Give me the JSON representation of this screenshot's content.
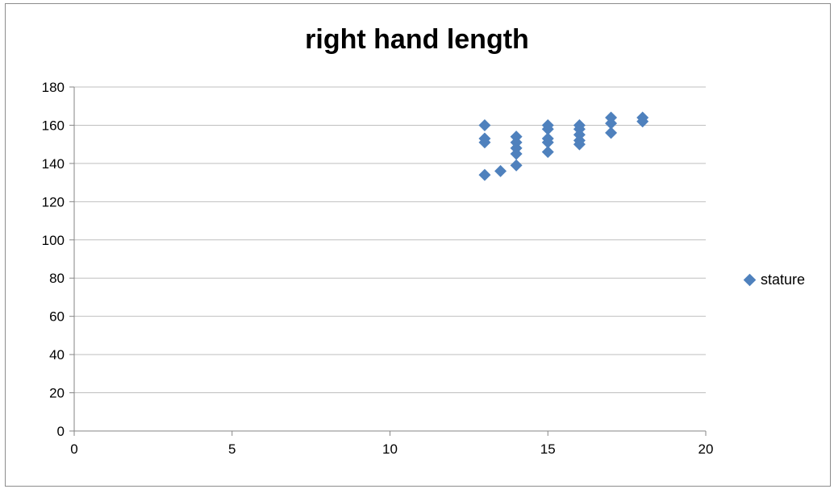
{
  "chart_data": {
    "type": "scatter",
    "title": "right hand length",
    "xlabel": "",
    "ylabel": "",
    "xlim": [
      0,
      20
    ],
    "ylim": [
      0,
      180
    ],
    "x_ticks": [
      0,
      5,
      10,
      15,
      20
    ],
    "y_ticks": [
      0,
      20,
      40,
      60,
      80,
      100,
      120,
      140,
      160,
      180
    ],
    "grid": "horizontal",
    "legend_position": "right",
    "marker": "diamond",
    "colors": {
      "series": "#4f81bd",
      "grid": "#bfbfbf"
    },
    "series": [
      {
        "name": "stature",
        "points": [
          {
            "x": 13,
            "y": 160
          },
          {
            "x": 13,
            "y": 153
          },
          {
            "x": 13,
            "y": 151
          },
          {
            "x": 13,
            "y": 134
          },
          {
            "x": 13.5,
            "y": 136
          },
          {
            "x": 14,
            "y": 154
          },
          {
            "x": 14,
            "y": 151
          },
          {
            "x": 14,
            "y": 148
          },
          {
            "x": 14,
            "y": 145
          },
          {
            "x": 14,
            "y": 139
          },
          {
            "x": 15,
            "y": 160
          },
          {
            "x": 15,
            "y": 158
          },
          {
            "x": 15,
            "y": 153
          },
          {
            "x": 15,
            "y": 151
          },
          {
            "x": 15,
            "y": 146
          },
          {
            "x": 16,
            "y": 160
          },
          {
            "x": 16,
            "y": 158
          },
          {
            "x": 16,
            "y": 155
          },
          {
            "x": 16,
            "y": 152
          },
          {
            "x": 16,
            "y": 150
          },
          {
            "x": 17,
            "y": 164
          },
          {
            "x": 17,
            "y": 161
          },
          {
            "x": 17,
            "y": 156
          },
          {
            "x": 18,
            "y": 164
          },
          {
            "x": 18,
            "y": 162
          }
        ]
      }
    ]
  }
}
